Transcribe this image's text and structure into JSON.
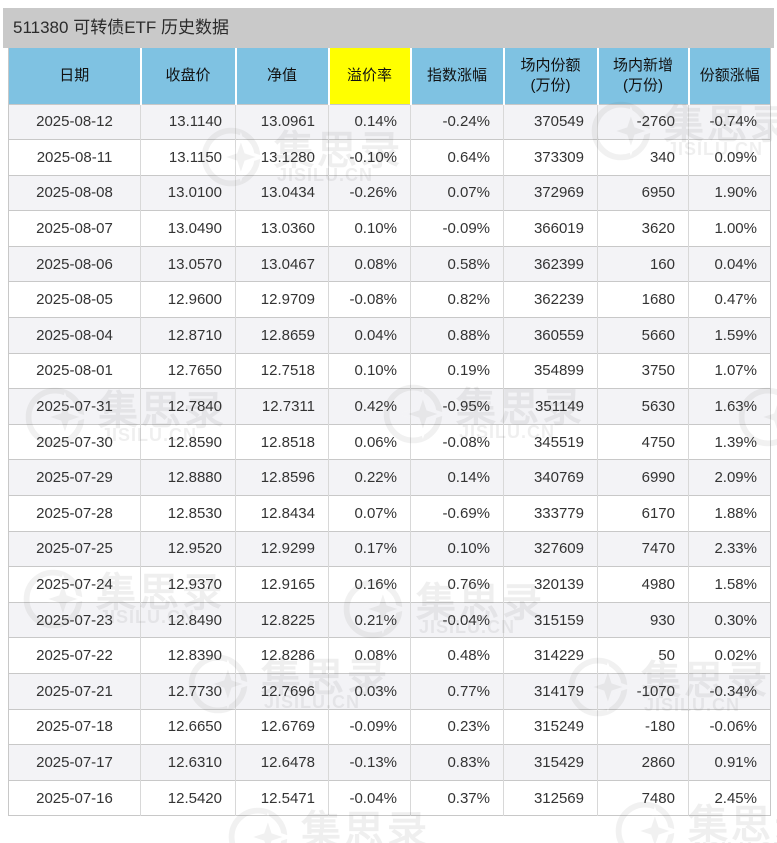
{
  "title": "511380 可转债ETF 历史数据",
  "watermark": {
    "logo_text": "集思录",
    "domain": "JISILU.CN"
  },
  "colors": {
    "header_bg": "#7fc2e2",
    "highlight_bg": "#ffff00",
    "title_bar_bg": "#c9c9c9",
    "row_alt_bg": "#f3f3f6",
    "border": "#c8c8c8",
    "cell_border": "#d8d8d8",
    "text": "#333333"
  },
  "table": {
    "columns": [
      {
        "key": "date",
        "label": "日期"
      },
      {
        "key": "close",
        "label": "收盘价"
      },
      {
        "key": "nav",
        "label": "净值"
      },
      {
        "key": "premium",
        "label": "溢价率",
        "highlight": true
      },
      {
        "key": "index-change",
        "label": "指数涨幅"
      },
      {
        "key": "shares",
        "label": "场内份额",
        "sub": "(万份)"
      },
      {
        "key": "shares-added",
        "label": "场内新增",
        "sub": "(万份)"
      },
      {
        "key": "share-change",
        "label": "份额涨幅"
      }
    ],
    "rows": [
      [
        "2025-08-12",
        "13.1140",
        "13.0961",
        "0.14%",
        "-0.24%",
        "370549",
        "-2760",
        "-0.74%"
      ],
      [
        "2025-08-11",
        "13.1150",
        "13.1280",
        "-0.10%",
        "0.64%",
        "373309",
        "340",
        "0.09%"
      ],
      [
        "2025-08-08",
        "13.0100",
        "13.0434",
        "-0.26%",
        "0.07%",
        "372969",
        "6950",
        "1.90%"
      ],
      [
        "2025-08-07",
        "13.0490",
        "13.0360",
        "0.10%",
        "-0.09%",
        "366019",
        "3620",
        "1.00%"
      ],
      [
        "2025-08-06",
        "13.0570",
        "13.0467",
        "0.08%",
        "0.58%",
        "362399",
        "160",
        "0.04%"
      ],
      [
        "2025-08-05",
        "12.9600",
        "12.9709",
        "-0.08%",
        "0.82%",
        "362239",
        "1680",
        "0.47%"
      ],
      [
        "2025-08-04",
        "12.8710",
        "12.8659",
        "0.04%",
        "0.88%",
        "360559",
        "5660",
        "1.59%"
      ],
      [
        "2025-08-01",
        "12.7650",
        "12.7518",
        "0.10%",
        "0.19%",
        "354899",
        "3750",
        "1.07%"
      ],
      [
        "2025-07-31",
        "12.7840",
        "12.7311",
        "0.42%",
        "-0.95%",
        "351149",
        "5630",
        "1.63%"
      ],
      [
        "2025-07-30",
        "12.8590",
        "12.8518",
        "0.06%",
        "-0.08%",
        "345519",
        "4750",
        "1.39%"
      ],
      [
        "2025-07-29",
        "12.8880",
        "12.8596",
        "0.22%",
        "0.14%",
        "340769",
        "6990",
        "2.09%"
      ],
      [
        "2025-07-28",
        "12.8530",
        "12.8434",
        "0.07%",
        "-0.69%",
        "333779",
        "6170",
        "1.88%"
      ],
      [
        "2025-07-25",
        "12.9520",
        "12.9299",
        "0.17%",
        "0.10%",
        "327609",
        "7470",
        "2.33%"
      ],
      [
        "2025-07-24",
        "12.9370",
        "12.9165",
        "0.16%",
        "0.76%",
        "320139",
        "4980",
        "1.58%"
      ],
      [
        "2025-07-23",
        "12.8490",
        "12.8225",
        "0.21%",
        "-0.04%",
        "315159",
        "930",
        "0.30%"
      ],
      [
        "2025-07-22",
        "12.8390",
        "12.8286",
        "0.08%",
        "0.48%",
        "314229",
        "50",
        "0.02%"
      ],
      [
        "2025-07-21",
        "12.7730",
        "12.7696",
        "0.03%",
        "0.77%",
        "314179",
        "-1070",
        "-0.34%"
      ],
      [
        "2025-07-18",
        "12.6650",
        "12.6769",
        "-0.09%",
        "0.23%",
        "315249",
        "-180",
        "-0.06%"
      ],
      [
        "2025-07-17",
        "12.6310",
        "12.6478",
        "-0.13%",
        "0.83%",
        "315429",
        "2860",
        "0.91%"
      ],
      [
        "2025-07-16",
        "12.5420",
        "12.5471",
        "-0.04%",
        "0.37%",
        "312569",
        "7480",
        "2.45%"
      ]
    ]
  }
}
